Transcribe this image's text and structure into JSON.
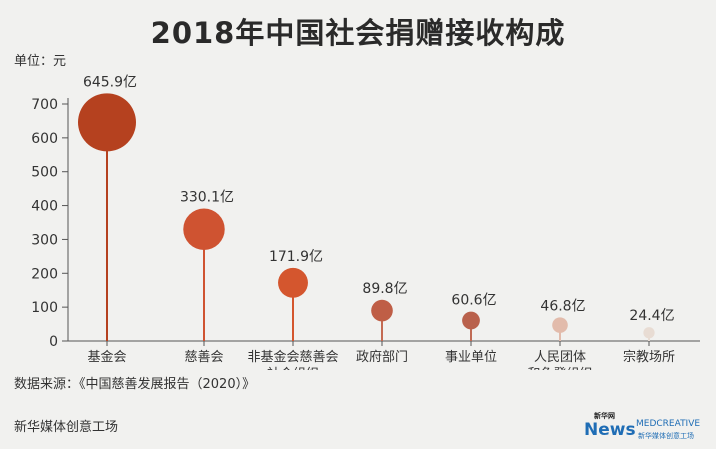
{
  "title": "2018年中国社会捐赠接收构成",
  "unit_label": "单位：元",
  "source": "数据来源：《中国慈善发展报告（2020）》",
  "credit": "新华媒体创意工场",
  "logos": {
    "xinhua_mark": "新华网",
    "news_mark": "News",
    "medcreative_mark": "MEDCREATIVE",
    "medcreative_sub": "新华媒体创意工场"
  },
  "chart_data": {
    "type": "lollipop",
    "ylim": [
      0,
      700
    ],
    "yticks": [
      "0",
      "100",
      "200",
      "300",
      "400",
      "500",
      "600",
      "700"
    ],
    "grid": false,
    "categories": [
      [
        "基金会"
      ],
      [
        "慈善会"
      ],
      [
        "非基金会慈善会",
        "社会组织"
      ],
      [
        "政府部门"
      ],
      [
        "事业单位"
      ],
      [
        "人民团体",
        "和免登组织"
      ],
      [
        "宗教场所"
      ]
    ],
    "values": [
      645.9,
      330.1,
      171.9,
      89.8,
      60.6,
      46.8,
      24.4
    ],
    "value_labels": [
      "645.9亿",
      "330.1亿",
      "171.9亿",
      "89.8亿",
      "60.6亿",
      "46.8亿",
      "24.4亿"
    ],
    "colors": [
      "#b5411f",
      "#cf5331",
      "#d4562e",
      "#bf5e46",
      "#b9614c",
      "#e2bbab",
      "#e8dcd3"
    ],
    "stem_colors": [
      "#b5411f",
      "#cf5331",
      "#d4562e",
      "#c46a52",
      "#c06b55",
      "#e2bbab",
      "#e8dcd3"
    ]
  }
}
